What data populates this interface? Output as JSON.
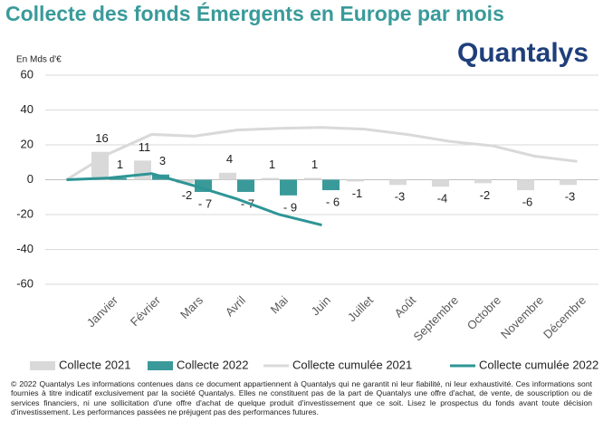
{
  "chart_data": {
    "type": "bar",
    "title": "Collecte des fonds Émergents en Europe par mois",
    "y_axis_label": "En Mds d'€",
    "logo": "Quantalys",
    "categories": [
      null,
      "Janvier",
      "Février",
      "Mars",
      "Avril",
      "Mai",
      "Juin",
      "Juillet",
      "Août",
      "Septembre",
      "Octobre",
      "Novembre",
      "Décembre"
    ],
    "series": [
      {
        "name": "Collecte 2021",
        "type": "bar",
        "color": "#d9d9d9",
        "values": [
          null,
          16,
          11,
          -2,
          4,
          1,
          1,
          -1,
          -3,
          -4,
          -2,
          -6,
          -3
        ]
      },
      {
        "name": "Collecte 2022",
        "type": "bar",
        "color": "#3a9a9a",
        "values": [
          null,
          1,
          3,
          -7,
          -7,
          -9,
          -6,
          null,
          null,
          null,
          null,
          null,
          null
        ],
        "value_labels": [
          null,
          "1",
          "3",
          "- 7",
          "- 7",
          "- 9",
          "- 6",
          null,
          null,
          null,
          null,
          null,
          null
        ]
      },
      {
        "name": "Collecte cumulée 2021",
        "type": "line",
        "color": "#d9d9d9",
        "values": [
          0,
          15,
          26,
          25,
          28.5,
          29.5,
          30,
          29,
          26,
          22,
          19.5,
          13.5,
          10.5
        ]
      },
      {
        "name": "Collecte cumulée 2022",
        "type": "line",
        "color": "#2e9595",
        "values": [
          0,
          1,
          3.5,
          -3.5,
          -11,
          -20,
          -26,
          null,
          null,
          null,
          null,
          null,
          null
        ]
      }
    ],
    "ylim": [
      -60,
      60
    ],
    "yticks": [
      -60,
      -40,
      -20,
      0,
      20,
      40,
      60
    ],
    "grid": true,
    "legend": "bottom",
    "footnote": "© 2022 Quantalys Les informations contenues dans ce document appartiennent à Quantalys qui ne garantit ni leur fiabilité, ni leur exhaustivité. Ces informations sont fournies à titre indicatif exclusivement par la société Quantalys. Elles ne constituent pas de la part de Quantalys une offre d'achat, de vente, de souscription ou de services financiers, ni une sollicitation d'une offre d'achat de quelque produit d'investissement que ce soit. Lisez le prospectus du fonds avant toute décision d'investissement. Les performances passées ne préjugent pas des performances futures."
  }
}
